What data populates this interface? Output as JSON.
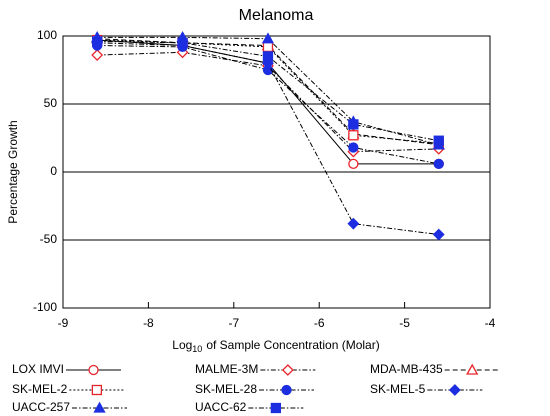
{
  "chart_data": {
    "type": "line",
    "title": "Melanoma",
    "xlabel": {
      "base": "Log",
      "subscript": "10",
      "rest": "of Sample Concentration (Molar)"
    },
    "ylabel": "Percentage Growth",
    "x": [
      -8.6,
      -7.6,
      -6.6,
      -5.6,
      -4.6
    ],
    "xlim": [
      -9,
      -4
    ],
    "xticks": [
      -9,
      -8,
      -7,
      -6,
      -5,
      -4
    ],
    "ylim": [
      -100,
      100
    ],
    "yticks": [
      -100,
      -50,
      0,
      50,
      100
    ],
    "grid": true,
    "series": [
      {
        "name": "LOX IMVI",
        "color": "#e8242b",
        "marker": "circle",
        "filled": false,
        "line_style": "solid",
        "values": [
          97,
          93,
          80,
          6,
          6
        ]
      },
      {
        "name": "MALME-3M",
        "color": "#e8242b",
        "marker": "diamond",
        "filled": false,
        "line_style": "dashdot",
        "values": [
          86,
          88,
          78,
          15,
          17
        ]
      },
      {
        "name": "MDA-MB-435",
        "color": "#e8242b",
        "marker": "triangle",
        "filled": false,
        "line_style": "dashed",
        "values": [
          98,
          95,
          93,
          28,
          20
        ]
      },
      {
        "name": "SK-MEL-2",
        "color": "#e8242b",
        "marker": "square",
        "filled": false,
        "line_style": "dotted",
        "values": [
          97,
          95,
          92,
          27,
          21
        ]
      },
      {
        "name": "SK-MEL-28",
        "color": "#1c2ee0",
        "marker": "circle",
        "filled": true,
        "line_style": "dashdot",
        "values": [
          93,
          92,
          75,
          18,
          6
        ]
      },
      {
        "name": "SK-MEL-5",
        "color": "#1c2ee0",
        "marker": "diamond",
        "filled": true,
        "line_style": "dashdot",
        "values": [
          95,
          93,
          80,
          -38,
          -46
        ]
      },
      {
        "name": "UACC-257",
        "color": "#1c2ee0",
        "marker": "triangle",
        "filled": true,
        "line_style": "dashdot",
        "values": [
          99,
          99,
          98,
          37,
          20
        ]
      },
      {
        "name": "UACC-62",
        "color": "#1c2ee0",
        "marker": "square",
        "filled": true,
        "line_style": "dashdot",
        "values": [
          96,
          95,
          85,
          35,
          23
        ]
      }
    ]
  }
}
